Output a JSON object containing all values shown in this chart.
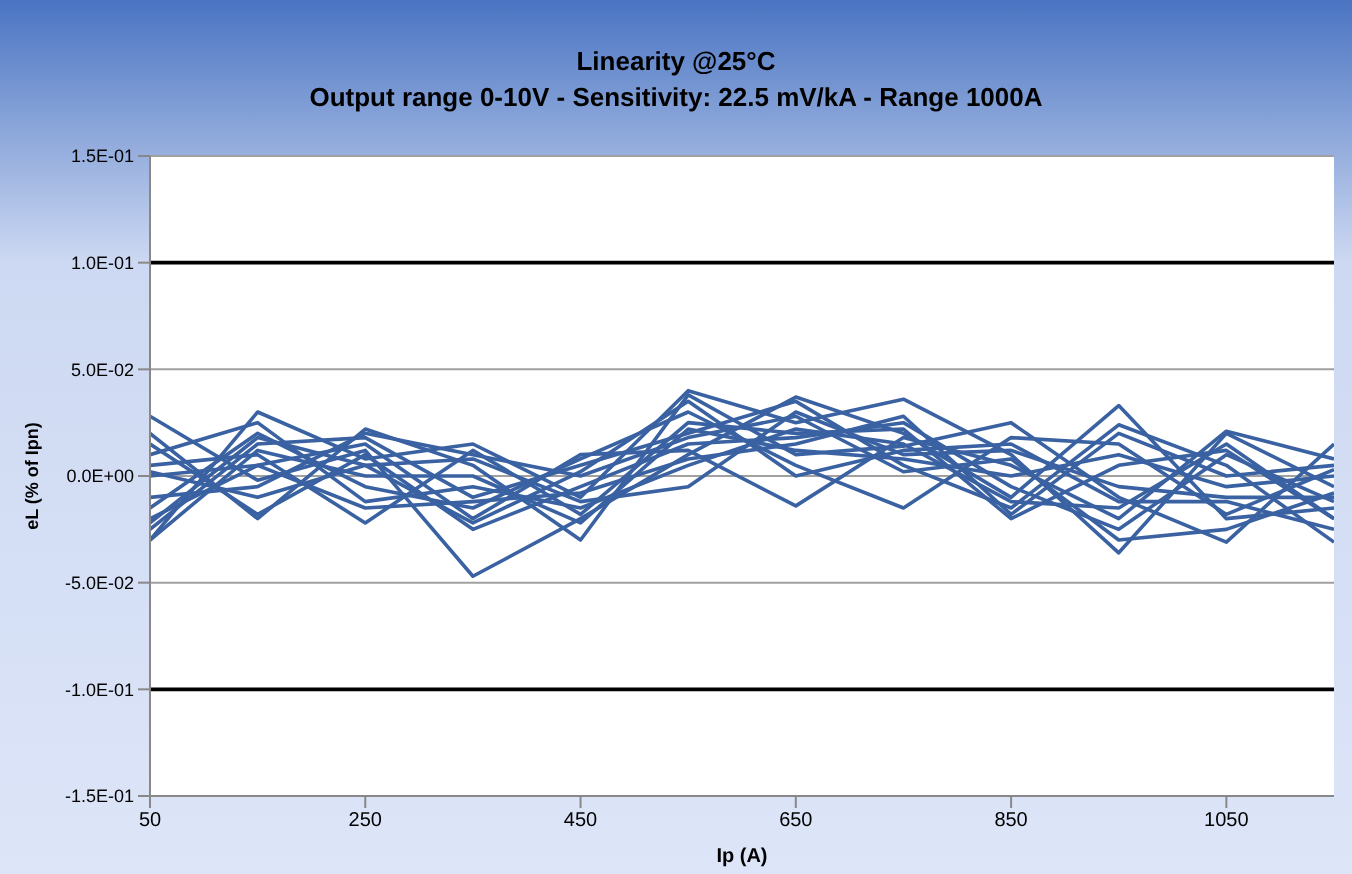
{
  "chart_data": {
    "type": "line",
    "title": "Linearity @25°C",
    "subtitle": "Output range 0-10V - Sensitivity: 22.5 mV/kA - Range 1000A",
    "xlabel": "Ip (A)",
    "ylabel": "eL (% of Ipn)",
    "x": [
      50,
      150,
      250,
      350,
      450,
      550,
      650,
      750,
      850,
      950,
      1050,
      1150
    ],
    "xlim": [
      50,
      1150
    ],
    "xticks": [
      50,
      250,
      450,
      650,
      850,
      1050
    ],
    "ylim": [
      -0.15,
      0.15
    ],
    "yticks": [
      {
        "value": -0.15,
        "label": "-1.5E-01"
      },
      {
        "value": -0.1,
        "label": "-1.0E-01"
      },
      {
        "value": -0.05,
        "label": "-5.0E-02"
      },
      {
        "value": 0,
        "label": "0.0E+00"
      },
      {
        "value": 0.05,
        "label": "5.0E-02"
      },
      {
        "value": 0.1,
        "label": "1.0E-01"
      },
      {
        "value": 0.15,
        "label": "1.5E-01"
      }
    ],
    "grid": "y",
    "marker": "none",
    "line_style": "solid",
    "series": [
      {
        "color": "#000000",
        "values": [
          0.1,
          0.1,
          0.1,
          0.1,
          0.1,
          0.1,
          0.1,
          0.1,
          0.1,
          0.1,
          0.1,
          0.1
        ]
      },
      {
        "color": "#000000",
        "values": [
          -0.1,
          -0.1,
          -0.1,
          -0.1,
          -0.1,
          -0.1,
          -0.1,
          -0.1,
          -0.1,
          -0.1,
          -0.1,
          -0.1
        ]
      },
      {
        "color": "#3a62a2",
        "values": [
          0.028,
          -0.002,
          0.012,
          -0.047,
          -0.02,
          0.01,
          0.037,
          0.02,
          -0.01,
          0.033,
          -0.02,
          -0.015
        ]
      },
      {
        "color": "#3a62a2",
        "values": [
          -0.03,
          0.03,
          0.008,
          0.015,
          -0.01,
          0.04,
          0.025,
          0.036,
          0.01,
          -0.036,
          0.02,
          -0.005
        ]
      },
      {
        "color": "#3a62a2",
        "values": [
          0.02,
          -0.02,
          0.022,
          0.005,
          -0.03,
          0.038,
          0.01,
          0.014,
          0.025,
          -0.01,
          -0.031,
          0.015
        ]
      },
      {
        "color": "#3a62a2",
        "values": [
          -0.025,
          0.015,
          0.018,
          -0.01,
          0.005,
          0.02,
          0.035,
          0.005,
          -0.015,
          0.024,
          0.005,
          -0.031
        ]
      },
      {
        "color": "#3a62a2",
        "values": [
          0.005,
          0.01,
          -0.022,
          0.012,
          -0.018,
          0.025,
          0.02,
          0.022,
          -0.02,
          0.005,
          0.012,
          -0.02
        ]
      },
      {
        "color": "#3a62a2",
        "values": [
          -0.02,
          0.005,
          0.015,
          -0.02,
          0.01,
          0.012,
          -0.014,
          0.018,
          0.005,
          -0.02,
          0.021,
          0.008
        ]
      },
      {
        "color": "#3a62a2",
        "values": [
          0.002,
          -0.01,
          0.005,
          0.008,
          -0.012,
          -0.005,
          0.03,
          0.01,
          0.012,
          -0.005,
          -0.01,
          -0.01
        ]
      },
      {
        "color": "#3a62a2",
        "values": [
          -0.015,
          0.02,
          -0.005,
          -0.015,
          0.008,
          0.03,
          0.005,
          -0.015,
          0.018,
          0.015,
          -0.018,
          0.003
        ]
      },
      {
        "color": "#3a62a2",
        "values": [
          0.015,
          -0.018,
          0.01,
          -0.025,
          -0.005,
          0.015,
          0.018,
          0.025,
          -0.005,
          -0.025,
          0.01,
          -0.012
        ]
      },
      {
        "color": "#3a62a2",
        "values": [
          -0.03,
          0.012,
          0.0,
          0.0,
          -0.022,
          0.022,
          0.012,
          0.008,
          0.0,
          0.01,
          -0.005,
          0.0
        ]
      },
      {
        "color": "#3a62a2",
        "values": [
          0.01,
          0.025,
          -0.012,
          -0.005,
          -0.015,
          0.005,
          0.022,
          0.015,
          -0.012,
          -0.015,
          0.015,
          -0.02
        ]
      },
      {
        "color": "#3a62a2",
        "values": [
          -0.01,
          -0.005,
          0.02,
          0.01,
          0.0,
          0.018,
          0.028,
          0.002,
          0.008,
          -0.03,
          -0.025,
          -0.008
        ]
      },
      {
        "color": "#3a62a2",
        "values": [
          0.0,
          0.005,
          -0.015,
          -0.012,
          -0.008,
          0.008,
          0.015,
          0.028,
          -0.018,
          0.02,
          0.0,
          0.005
        ]
      },
      {
        "color": "#3a62a2",
        "values": [
          -0.022,
          0.018,
          0.005,
          -0.022,
          0.002,
          0.035,
          0.0,
          0.012,
          0.015,
          -0.012,
          -0.012,
          -0.025
        ]
      }
    ]
  }
}
